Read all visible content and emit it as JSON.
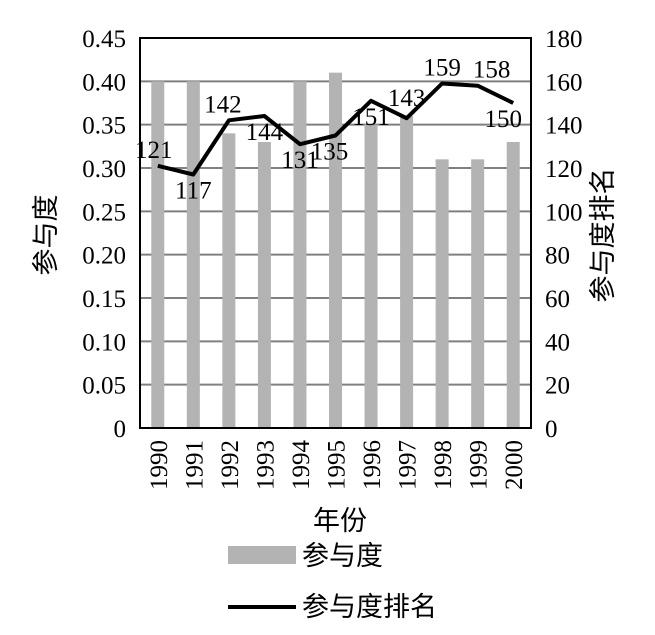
{
  "chart_data": {
    "type": "bar",
    "categories": [
      "1990",
      "1991",
      "1992",
      "1993",
      "1994",
      "1995",
      "1996",
      "1997",
      "1998",
      "1999",
      "2000"
    ],
    "series": [
      {
        "name": "参与度",
        "type": "bar",
        "axis": "left",
        "color": "#b3b3b3",
        "values": [
          0.4,
          0.4,
          0.34,
          0.33,
          0.4,
          0.41,
          0.35,
          0.36,
          0.31,
          0.31,
          0.33
        ]
      },
      {
        "name": "参与度排名",
        "type": "line",
        "axis": "right",
        "color": "#000000",
        "values": [
          121,
          117,
          142,
          144,
          131,
          135,
          151,
          143,
          159,
          158,
          150
        ],
        "labels": [
          "121",
          "117",
          "142",
          "144",
          "131",
          "135",
          "151",
          "143",
          "159",
          "158",
          "150"
        ]
      }
    ],
    "xlabel": "年份",
    "ylabel_left": "参与度",
    "ylabel_right": "参与度排名",
    "ylim_left": [
      0,
      0.45
    ],
    "ylim_right": [
      0,
      180
    ],
    "yticks_left": [
      "0",
      "0.05",
      "0.10",
      "0.15",
      "0.20",
      "0.25",
      "0.30",
      "0.35",
      "0.40",
      "0.45"
    ],
    "yticks_right": [
      "0",
      "20",
      "40",
      "60",
      "80",
      "100",
      "120",
      "140",
      "160",
      "180"
    ],
    "grid": true,
    "legend_position": "bottom"
  }
}
